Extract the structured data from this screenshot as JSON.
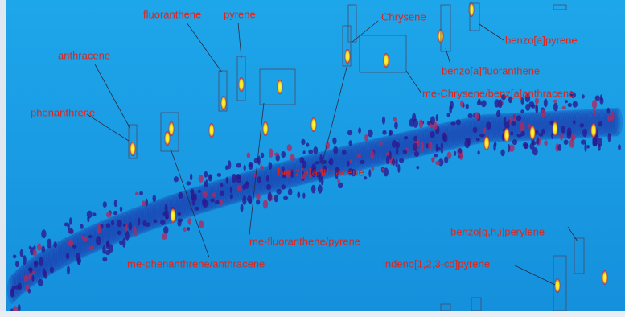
{
  "labels": [
    "fluoranthene",
    "pyrene",
    "Chrysene",
    "benzo[a]pyrene",
    "anthracene",
    "benzo[a]fluoranthene",
    "me-Chrysene/benz[a]anthracene",
    "phenanthrene",
    "benz[a]anthracene",
    "benzo[g,h,i]perylene",
    "me-fluoranthene/pyrene",
    "indeno[1,2,3-cd]pyrene",
    "me-phenanthrene/anthracene"
  ]
}
